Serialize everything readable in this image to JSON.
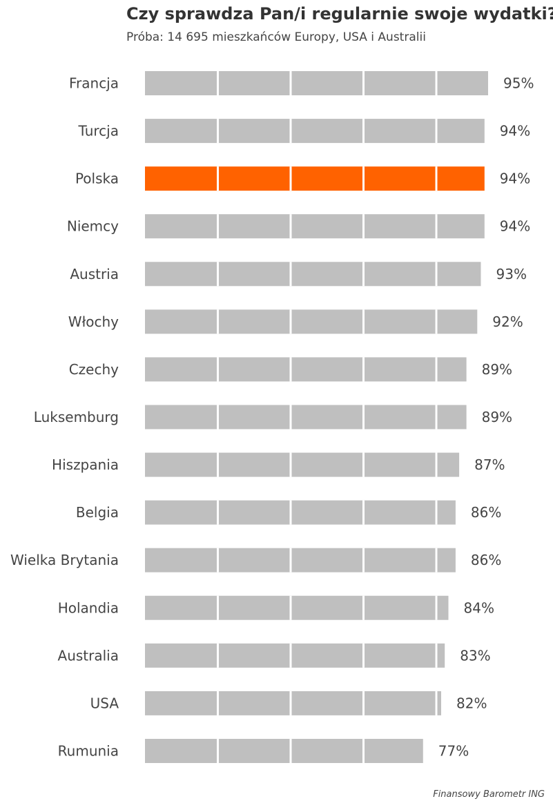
{
  "chart_data": {
    "type": "bar",
    "orientation": "horizontal",
    "title": "Czy sprawdza Pan/i regularnie swoje wydatki?",
    "subtitle": "Próba: 14 695 mieszkańców Europy, USA i Australii",
    "categories": [
      "Francja",
      "Turcja",
      "Polska",
      "Niemcy",
      "Austria",
      "Włochy",
      "Czechy",
      "Luksemburg",
      "Hiszpania",
      "Belgia",
      "Wielka Brytania",
      "Holandia",
      "Australia",
      "USA",
      "Rumunia"
    ],
    "values": [
      95,
      94,
      94,
      94,
      93,
      92,
      89,
      89,
      87,
      86,
      86,
      84,
      83,
      82,
      77
    ],
    "value_labels": [
      "95%",
      "94%",
      "94%",
      "94%",
      "93%",
      "92%",
      "89%",
      "89%",
      "87%",
      "86%",
      "86%",
      "84%",
      "83%",
      "82%",
      "77%"
    ],
    "highlight": "Polska",
    "colors": {
      "default": "#bfbfbf",
      "highlight": "#ff6200"
    },
    "xlim": [
      0,
      100
    ],
    "grid": false,
    "source": "Finansowy Barometr ING"
  }
}
